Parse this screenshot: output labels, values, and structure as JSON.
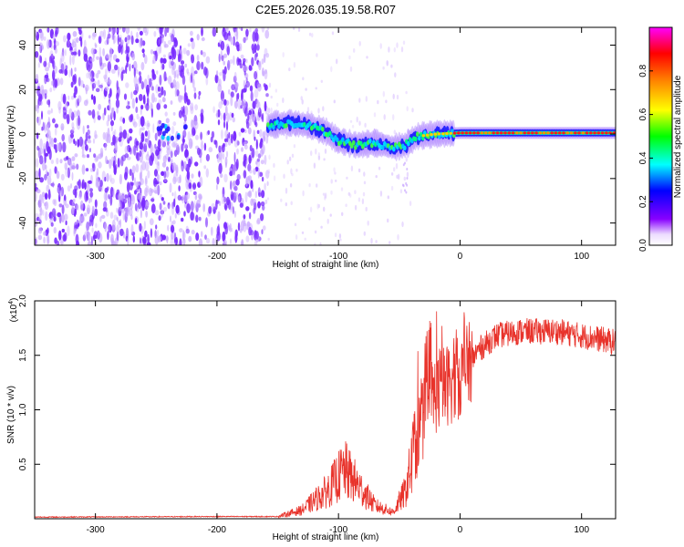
{
  "title": "C2E5.2026.035.19.58.R07",
  "colors": {
    "scatter_sparse": "#7a2cff",
    "scatter_light": "#c9a8ff",
    "snr_line": "#e8322a",
    "ridge_core": "#ff1a1a",
    "ridge_edge": "#2222ff"
  },
  "chart_data": [
    {
      "id": "spectrogram",
      "type": "heatmap",
      "xlabel": "Height of straight line (km)",
      "ylabel": "Frequency (Hz)",
      "xlim": [
        -350,
        128
      ],
      "ylim": [
        -50,
        48
      ],
      "xticks": [
        -300,
        -200,
        -100,
        0,
        100
      ],
      "xtick_labels": [
        "-300",
        "-200",
        "-100",
        "0",
        "100"
      ],
      "yticks": [
        -40,
        -20,
        0,
        20,
        40
      ],
      "ytick_labels": [
        "-40",
        "-20",
        "0",
        "20",
        "40"
      ],
      "noise_region_x": [
        -350,
        -158
      ],
      "ridge": [
        {
          "x": -158,
          "f": 4
        },
        {
          "x": -140,
          "f": 5
        },
        {
          "x": -125,
          "f": 4
        },
        {
          "x": -110,
          "f": 1
        },
        {
          "x": -100,
          "f": -3
        },
        {
          "x": -85,
          "f": -5
        },
        {
          "x": -70,
          "f": -4
        },
        {
          "x": -55,
          "f": -6
        },
        {
          "x": -45,
          "f": -5
        },
        {
          "x": -35,
          "f": -1
        },
        {
          "x": -20,
          "f": 0
        },
        {
          "x": 0,
          "f": 0.5
        },
        {
          "x": 50,
          "f": 0.5
        },
        {
          "x": 128,
          "f": 0.5
        }
      ],
      "colorbar": {
        "label": "Normalized spectral amplitude",
        "range": [
          0.0,
          1.0
        ],
        "ticks": [
          0.0,
          0.2,
          0.4,
          0.6,
          0.8
        ],
        "tick_labels": [
          "0.0",
          "0.2",
          "0.4",
          "0.6",
          "0.8"
        ],
        "colormap": [
          "#ffffff",
          "#8800ff",
          "#0000ff",
          "#00ffff",
          "#00ff00",
          "#ffff00",
          "#ff8800",
          "#ff0000",
          "#ff00ff"
        ]
      }
    },
    {
      "id": "snr",
      "type": "line",
      "xlabel": "Height of straight line (km)",
      "ylabel": "SNR (10 * v/v)",
      "scale_label": "(x10",
      "scale_exponent": "4",
      "scale_close": ")",
      "xlim": [
        -350,
        128
      ],
      "ylim": [
        0,
        2.0
      ],
      "xticks": [
        -300,
        -200,
        -100,
        0,
        100
      ],
      "xtick_labels": [
        "-300",
        "-200",
        "-100",
        "0",
        "100"
      ],
      "yticks": [
        0.5,
        1.0,
        1.5,
        2.0
      ],
      "ytick_labels": [
        "0.5",
        "1.0",
        "1.5",
        "2.0"
      ],
      "envelope": [
        {
          "x": -350,
          "y": 0.015
        },
        {
          "x": -200,
          "y": 0.02
        },
        {
          "x": -150,
          "y": 0.02
        },
        {
          "x": -130,
          "y": 0.08
        },
        {
          "x": -110,
          "y": 0.25
        },
        {
          "x": -95,
          "y": 0.45
        },
        {
          "x": -85,
          "y": 0.32
        },
        {
          "x": -70,
          "y": 0.12
        },
        {
          "x": -55,
          "y": 0.06
        },
        {
          "x": -45,
          "y": 0.25
        },
        {
          "x": -35,
          "y": 0.75
        },
        {
          "x": -25,
          "y": 1.1
        },
        {
          "x": -15,
          "y": 1.2
        },
        {
          "x": 0,
          "y": 1.3
        },
        {
          "x": 15,
          "y": 1.55
        },
        {
          "x": 30,
          "y": 1.68
        },
        {
          "x": 50,
          "y": 1.72
        },
        {
          "x": 80,
          "y": 1.72
        },
        {
          "x": 110,
          "y": 1.66
        },
        {
          "x": 128,
          "y": 1.62
        }
      ]
    }
  ]
}
